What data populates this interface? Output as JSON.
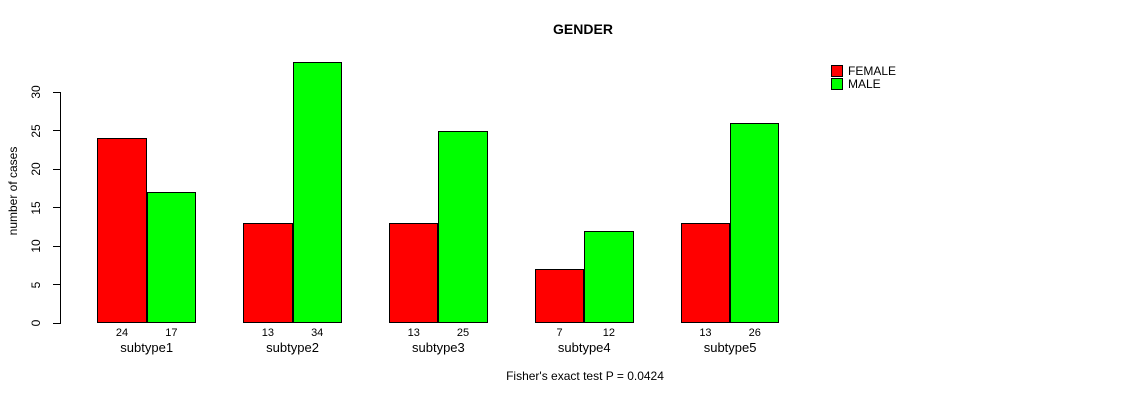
{
  "title": "GENDER",
  "y_axis": {
    "label": "number of cases",
    "ticks": [
      0,
      5,
      10,
      15,
      20,
      25,
      30
    ]
  },
  "legend": {
    "items": [
      {
        "label": "FEMALE",
        "color": "#ff0000"
      },
      {
        "label": "MALE",
        "color": "#00ff00"
      }
    ]
  },
  "caption": "Fisher's exact test P = 0.0424",
  "chart_data": {
    "type": "bar",
    "title": "GENDER",
    "xlabel": "",
    "ylabel": "number of cases",
    "categories": [
      "subtype1",
      "subtype2",
      "subtype3",
      "subtype4",
      "subtype5"
    ],
    "series": [
      {
        "name": "FEMALE",
        "color": "#ff0000",
        "values": [
          24,
          13,
          13,
          7,
          13
        ]
      },
      {
        "name": "MALE",
        "color": "#00ff00",
        "values": [
          17,
          34,
          25,
          12,
          26
        ]
      }
    ],
    "value_labels_shown": true,
    "ylim": [
      0,
      34
    ],
    "y_tick_step": 5,
    "grid": false,
    "legend_position": "top-right",
    "caption": "Fisher's exact test P = 0.0424"
  }
}
